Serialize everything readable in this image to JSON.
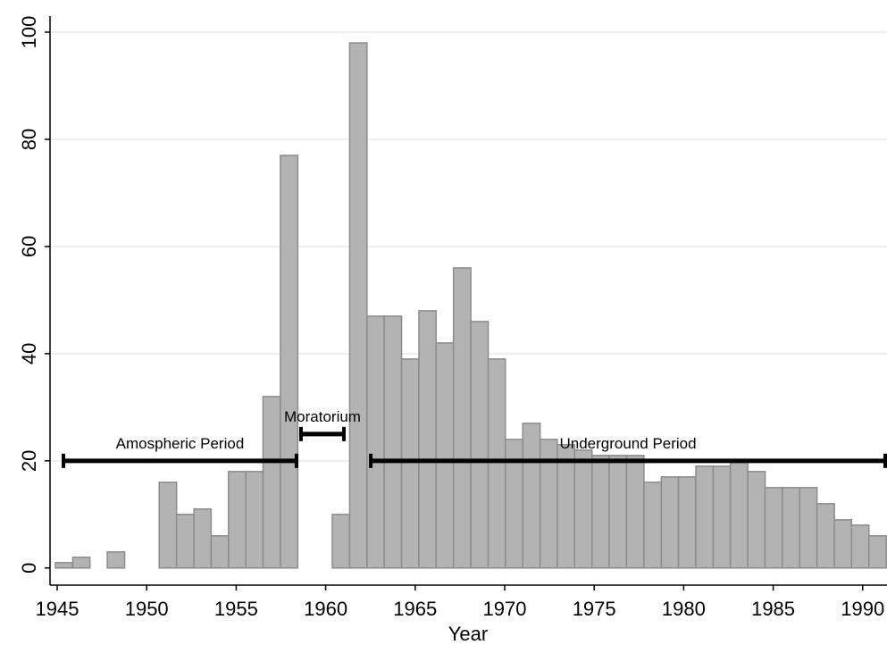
{
  "chart_data": {
    "type": "histogram",
    "xlabel": "Year",
    "bins": [
      1944.9,
      1945.87,
      1946.83,
      1947.8,
      1948.77,
      1949.74,
      1950.7,
      1951.67,
      1952.64,
      1953.6,
      1954.57,
      1955.54,
      1956.5,
      1957.47,
      1958.44,
      1959.41,
      1960.37,
      1961.34,
      1962.31,
      1963.27,
      1964.24,
      1965.21,
      1966.17,
      1967.14,
      1968.11,
      1969.08,
      1970.04,
      1971.01,
      1971.98,
      1972.94,
      1973.91,
      1974.88,
      1975.84,
      1976.81,
      1977.78,
      1978.75,
      1979.71,
      1980.68,
      1981.65,
      1982.61,
      1983.58,
      1984.55,
      1985.51,
      1986.48,
      1987.45,
      1988.42,
      1989.38,
      1990.35,
      1991.32
    ],
    "values": [
      1,
      2,
      0,
      3,
      0,
      0,
      16,
      10,
      11,
      6,
      18,
      18,
      32,
      77,
      0,
      0,
      10,
      98,
      47,
      47,
      39,
      48,
      42,
      56,
      46,
      39,
      24,
      27,
      24,
      23,
      22,
      21,
      21,
      21,
      16,
      17,
      17,
      19,
      19,
      20,
      18,
      15,
      15,
      15,
      12,
      9,
      8,
      6
    ],
    "color": "#b3b3b3",
    "xlim": [
      1944.6,
      1991.36
    ],
    "xticks": [
      1945,
      1950,
      1955,
      1960,
      1965,
      1970,
      1975,
      1980,
      1985,
      1990
    ],
    "ylim": [
      -3.2,
      103
    ],
    "yticks": [
      0,
      20,
      40,
      60,
      80,
      100
    ],
    "grid": true,
    "annotations": [
      {
        "label": "Amospheric Period",
        "x": [
          1945.35,
          1958.37
        ],
        "y": 20
      },
      {
        "label": "Moratorium",
        "x": [
          1958.62,
          1961.02
        ],
        "y": 25
      },
      {
        "label": "Underground Period",
        "x": [
          1962.52,
          1991.26
        ],
        "y": 20
      }
    ]
  }
}
